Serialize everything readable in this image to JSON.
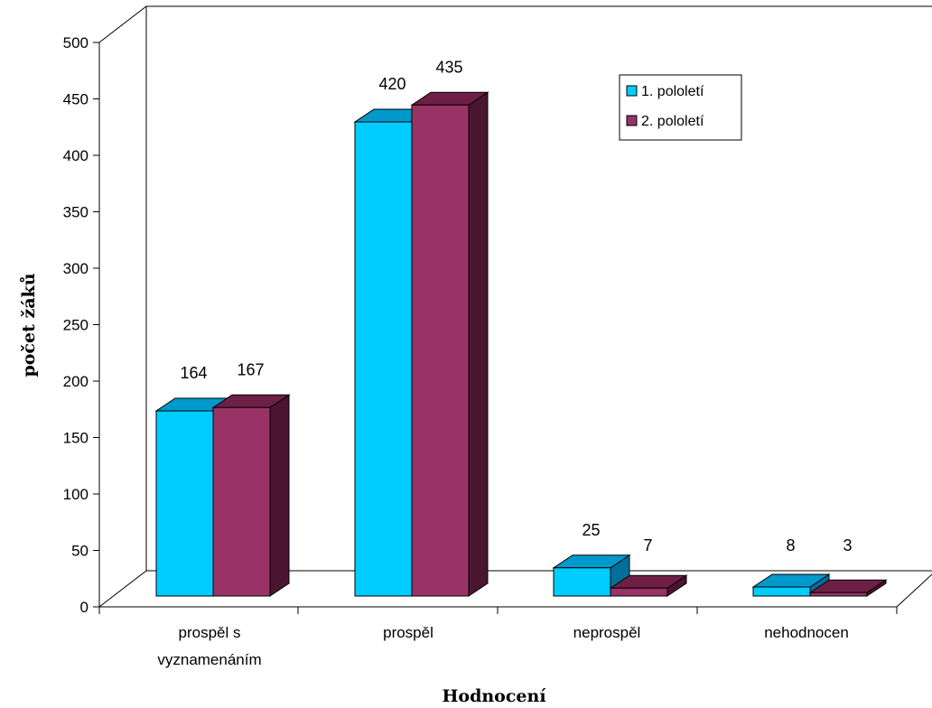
{
  "chart_data": {
    "type": "bar",
    "style": "3d-clustered-column",
    "categories": [
      "prospěl s vyznamenáním",
      "prospěl",
      "neprospěl",
      "nehodnocen"
    ],
    "category_lines": [
      [
        "prospěl s",
        "vyznamenáním"
      ],
      [
        "prospěl"
      ],
      [
        "neprospěl"
      ],
      [
        "nehodnocen"
      ]
    ],
    "series": [
      {
        "name": "1. pololetí",
        "values": [
          164,
          420,
          25,
          8
        ],
        "color": "#00CCFF",
        "top_color": "#0099CC",
        "side_color": "#006F9A"
      },
      {
        "name": "2. pololetí",
        "values": [
          167,
          435,
          7,
          3
        ],
        "color": "#993366",
        "top_color": "#6E1F45",
        "side_color": "#4A1530"
      }
    ],
    "xlabel": "Hodnocení",
    "ylabel": "počet žáků",
    "ylim": [
      0,
      500
    ],
    "yticks": [
      0,
      50,
      100,
      150,
      200,
      250,
      300,
      350,
      400,
      450,
      500
    ],
    "ytick_labels": [
      "0",
      "50",
      "100",
      "150",
      "200",
      "250",
      "300",
      "350",
      "400",
      "450",
      "500"
    ],
    "grid": false,
    "legend_position": "top-right"
  }
}
